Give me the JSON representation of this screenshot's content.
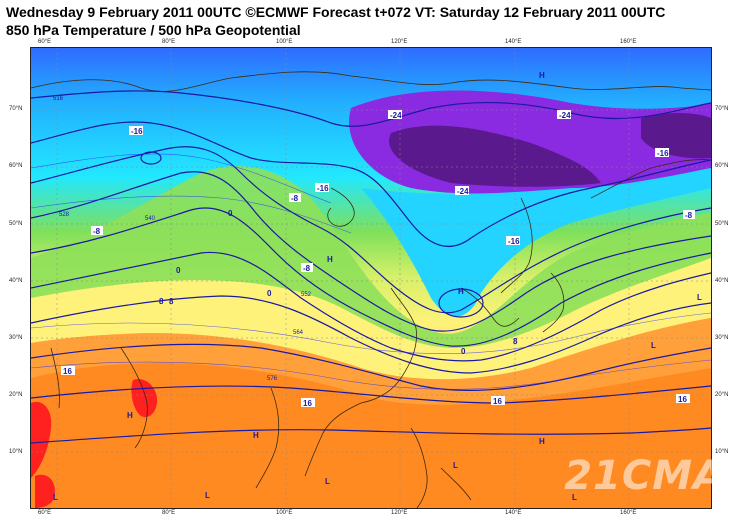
{
  "header": {
    "line1": "Wednesday 9 February 2011 00UTC ©ECMWF Forecast t+072 VT: Saturday 12 February 2011 00UTC",
    "line2": "850 hPa Temperature / 500 hPa Geopotential"
  },
  "axes": {
    "lon_ticks": [
      "60°E",
      "80°E",
      "100°E",
      "120°E",
      "140°E",
      "160°E"
    ],
    "lat_ticks": [
      "70°N",
      "60°N",
      "50°N",
      "40°N",
      "30°N",
      "20°N",
      "10°N"
    ]
  },
  "map": {
    "temperature_colors": {
      "purple": "#8a2be2",
      "dark_purple": "#5a1a8e",
      "blue": "#3a7bff",
      "cyan": "#00d0ff",
      "green": "#7fe05a",
      "yellow": "#fff27a",
      "orange": "#ffa03a",
      "deep_orange": "#ff7a1a",
      "red": "#ff2020"
    },
    "contour_color": "#1a1aa0",
    "labels": {
      "t_m24a": "-24",
      "t_m24b": "-24",
      "t_m24c": "-24",
      "t_m16a": "-16",
      "t_m16b": "-16",
      "t_m16c": "-16",
      "t_m16d": "-16",
      "t_m8a": "-8",
      "t_m8b": "-8",
      "t_m8c": "-8",
      "t_m8d": "-8",
      "t_0a": "0",
      "t_0b": "0",
      "t_0c": "0",
      "t_0d": "0",
      "t_8a": "8",
      "t_8b": "8",
      "t_8c": "8",
      "t_16a": "16",
      "t_16b": "16",
      "t_16c": "16",
      "t_16d": "16",
      "g_516": "516",
      "g_528": "528",
      "g_540": "540",
      "g_552": "552",
      "g_564": "564",
      "g_576": "576",
      "H1": "H",
      "H2": "H",
      "H3": "H",
      "H4": "H",
      "H5": "H",
      "H6": "H",
      "L1": "L",
      "L2": "L",
      "L3": "L",
      "L4": "L",
      "L5": "L",
      "L6": "L",
      "L7": "L"
    }
  },
  "watermark": "21CMA"
}
